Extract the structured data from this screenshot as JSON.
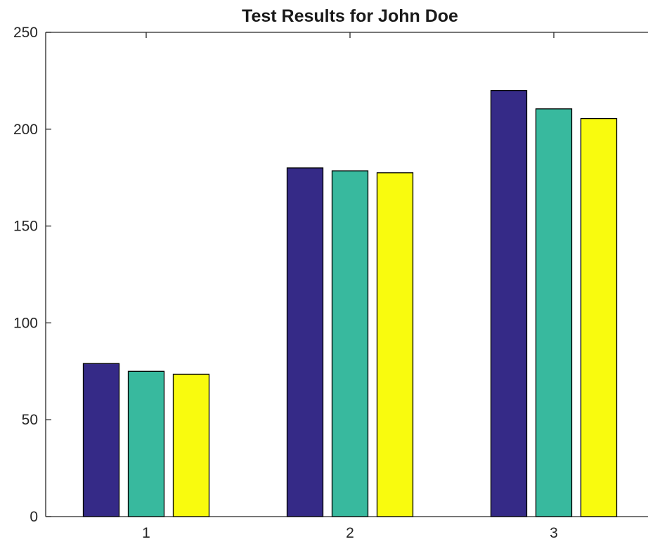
{
  "chart_data": {
    "type": "bar",
    "title": "Test Results for John Doe",
    "xlabel": "",
    "ylabel": "",
    "categories": [
      "1",
      "2",
      "3"
    ],
    "series": [
      {
        "values": [
          79,
          180,
          220
        ],
        "color": "#352a87"
      },
      {
        "values": [
          75,
          178.5,
          210.5
        ],
        "color": "#38b99e"
      },
      {
        "values": [
          73.5,
          177.5,
          205.5
        ],
        "color": "#f9fb0e"
      }
    ],
    "ylim": [
      0,
      250
    ],
    "yticks": [
      0,
      50,
      100,
      150,
      200,
      250
    ],
    "ytick_labels": [
      "0",
      "50",
      "100",
      "150",
      "200",
      "250"
    ],
    "grid": false,
    "legend": "none"
  }
}
